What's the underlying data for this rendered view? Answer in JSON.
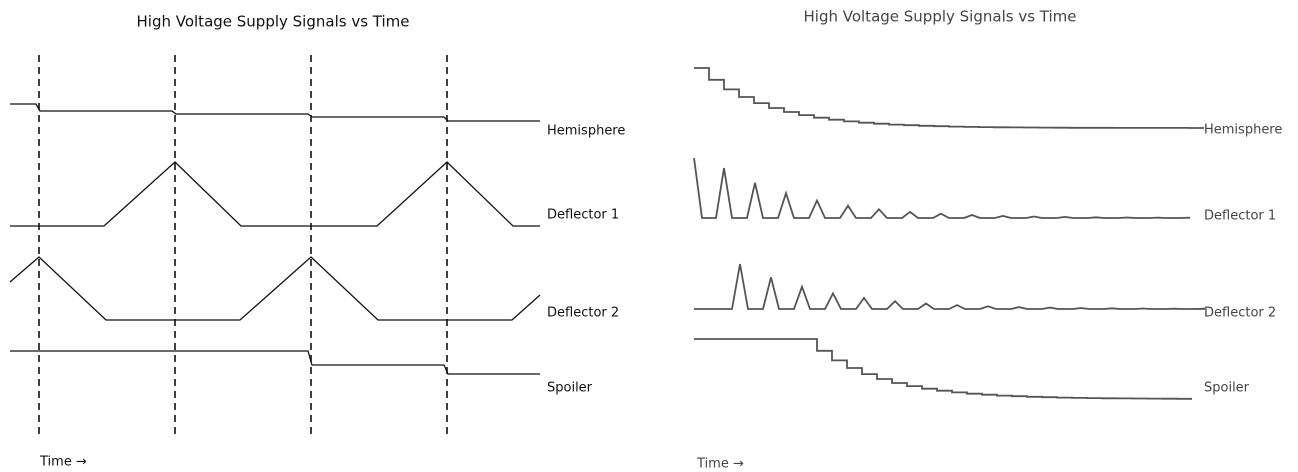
{
  "left": {
    "title": "High Voltage Supply Signals vs Time",
    "labels": [
      "Hemisphere",
      "Deflector 1",
      "Deflector 2",
      "Spoiler"
    ],
    "time_label": "Time →"
  },
  "right": {
    "title": "High Voltage Supply Signals vs Time",
    "labels": [
      "Hemisphere",
      "Deflector 1",
      "Deflector 2",
      "Spoiler"
    ],
    "time_label": "Time →"
  }
}
